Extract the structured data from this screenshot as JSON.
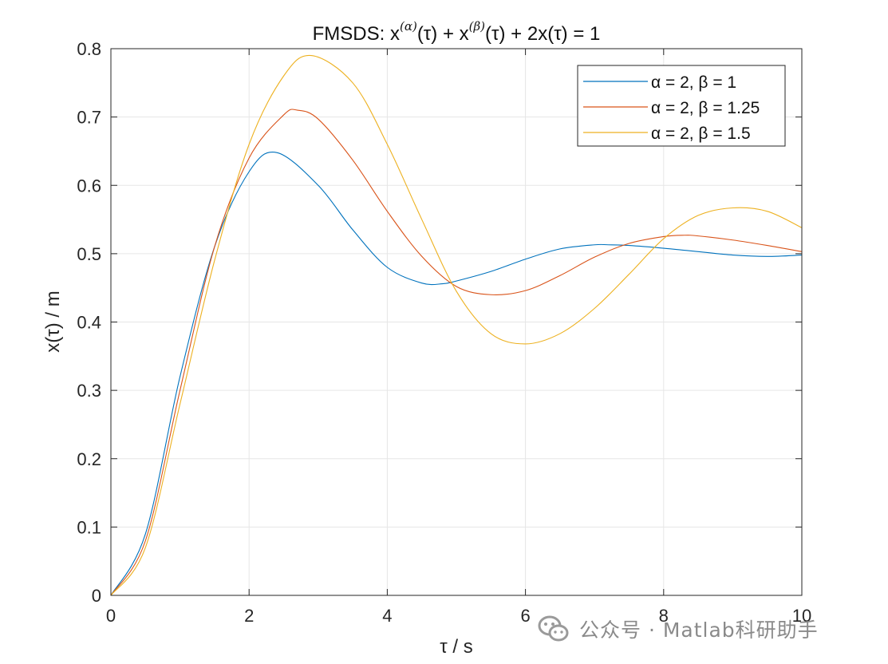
{
  "chart_data": {
    "type": "line",
    "title": "FMSDS: x^(α)(τ) + x^(β)(τ) + 2x(τ) = 1",
    "title_parts": {
      "a": "FMSDS: x",
      "sup1": "(α)",
      "b": "(τ) + x",
      "sup2": "(β)",
      "c": "(τ) + 2x(τ) = 1"
    },
    "xlabel": "τ / s",
    "ylabel": "x(τ) / m",
    "xlim": [
      0,
      10
    ],
    "ylim": [
      0,
      0.8
    ],
    "xticks": [
      "0",
      "2",
      "4",
      "6",
      "8",
      "10"
    ],
    "yticks": [
      "0",
      "0.1",
      "0.2",
      "0.3",
      "0.4",
      "0.5",
      "0.6",
      "0.7",
      "0.8"
    ],
    "grid": true,
    "legend_position": "top-right",
    "series": [
      {
        "name": "α = 2, β = 1",
        "color": "#0072BD",
        "x": [
          0,
          0.5,
          1,
          1.5,
          2,
          2.4,
          3,
          3.5,
          4,
          4.5,
          4.8,
          5,
          5.5,
          6,
          6.5,
          7,
          7.2,
          7.5,
          8,
          8.5,
          9,
          9.5,
          10
        ],
        "y": [
          0,
          0.09,
          0.32,
          0.51,
          0.62,
          0.648,
          0.6,
          0.535,
          0.48,
          0.457,
          0.456,
          0.46,
          0.474,
          0.492,
          0.507,
          0.513,
          0.513,
          0.512,
          0.508,
          0.503,
          0.498,
          0.496,
          0.498
        ]
      },
      {
        "name": "α = 2, β = 1.25",
        "color": "#D95319",
        "x": [
          0,
          0.5,
          1,
          1.5,
          2,
          2.5,
          2.7,
          3,
          3.5,
          4,
          4.5,
          5,
          5.5,
          6,
          6.5,
          7,
          7.5,
          8,
          8.3,
          8.5,
          9,
          9.5,
          10
        ],
        "y": [
          0,
          0.08,
          0.3,
          0.51,
          0.64,
          0.703,
          0.71,
          0.697,
          0.637,
          0.562,
          0.496,
          0.452,
          0.44,
          0.446,
          0.468,
          0.495,
          0.515,
          0.525,
          0.527,
          0.526,
          0.52,
          0.512,
          0.503
        ]
      },
      {
        "name": "α = 2, β = 1.5",
        "color": "#EDB120",
        "x": [
          0,
          0.5,
          1,
          1.5,
          2,
          2.5,
          2.9,
          3.5,
          4,
          4.5,
          5,
          5.5,
          6,
          6.5,
          7,
          7.5,
          8,
          8.5,
          9,
          9.5,
          10
        ],
        "y": [
          0,
          0.07,
          0.28,
          0.49,
          0.66,
          0.76,
          0.79,
          0.75,
          0.66,
          0.55,
          0.445,
          0.383,
          0.368,
          0.383,
          0.42,
          0.47,
          0.522,
          0.556,
          0.567,
          0.562,
          0.538
        ]
      }
    ]
  },
  "watermark": {
    "text": "公众号 · Matlab科研助手",
    "icon": "wechat-icon"
  }
}
